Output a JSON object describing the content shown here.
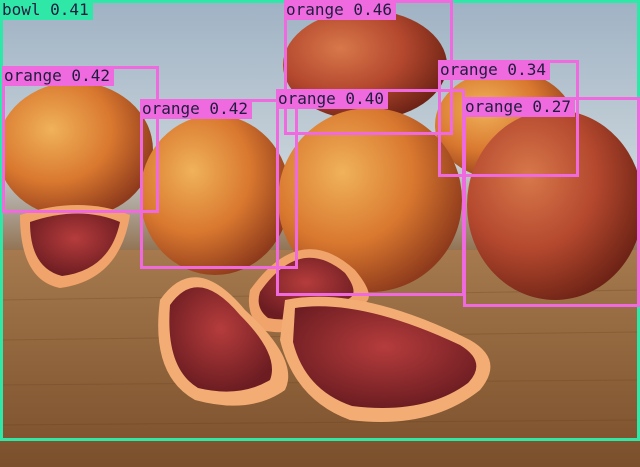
{
  "detections": [
    {
      "label": "bowl 0.41",
      "color": "#2fe8a8"
    },
    {
      "label": "orange 0.46",
      "color": "#f06adf"
    },
    {
      "label": "orange 0.42",
      "color": "#f06adf"
    },
    {
      "label": "orange 0.42",
      "color": "#f06adf"
    },
    {
      "label": "orange 0.40",
      "color": "#f06adf"
    },
    {
      "label": "orange 0.34",
      "color": "#f06adf"
    },
    {
      "label": "orange 0.27",
      "color": "#f06adf"
    }
  ]
}
